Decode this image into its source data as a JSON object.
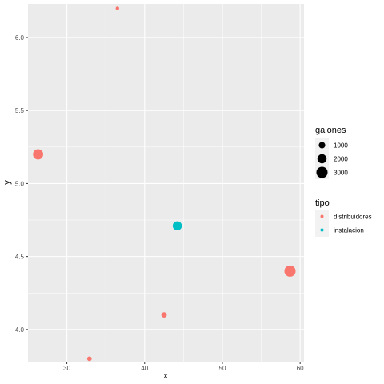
{
  "chart_data": {
    "type": "scatter",
    "xlabel": "x",
    "ylabel": "y",
    "xlim": [
      25,
      60.5
    ],
    "ylim": [
      3.78,
      6.23
    ],
    "x_ticks": [
      30,
      40,
      50,
      60
    ],
    "x_tick_labels": [
      "30",
      "40",
      "50",
      "60"
    ],
    "y_ticks": [
      4.0,
      4.5,
      5.0,
      5.5,
      6.0
    ],
    "y_tick_labels": [
      "4.0",
      "4.5",
      "5.0",
      "5.5",
      "6.0"
    ],
    "grid": true,
    "legend_position": "right",
    "size_legend": {
      "title": "galones",
      "entries": [
        {
          "label": "1000",
          "value": 1000
        },
        {
          "label": "2000",
          "value": 2000
        },
        {
          "label": "3000",
          "value": 3000
        }
      ]
    },
    "color_legend": {
      "title": "tipo",
      "entries": [
        {
          "label": "distribuidores",
          "color": "#F8766D"
        },
        {
          "label": "instalacion",
          "color": "#00BFC4"
        }
      ]
    },
    "points": [
      {
        "x": 36.5,
        "y": 6.2,
        "galones": 300,
        "tipo": "distribuidores"
      },
      {
        "x": 26.3,
        "y": 5.2,
        "galones": 2500,
        "tipo": "distribuidores"
      },
      {
        "x": 44.2,
        "y": 4.71,
        "galones": 2000,
        "tipo": "instalacion"
      },
      {
        "x": 58.7,
        "y": 4.4,
        "galones": 3000,
        "tipo": "distribuidores"
      },
      {
        "x": 42.5,
        "y": 4.1,
        "galones": 700,
        "tipo": "distribuidores"
      },
      {
        "x": 32.9,
        "y": 3.8,
        "galones": 500,
        "tipo": "distribuidores"
      }
    ]
  }
}
